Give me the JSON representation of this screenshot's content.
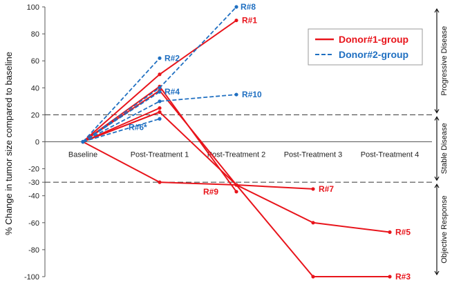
{
  "chart_data": {
    "type": "line",
    "ylabel": "% Change in tumor size compared to baseline",
    "categories": [
      "Baseline",
      "Post-Treatment 1",
      "Post-Treatment 2",
      "Post-Treatment 3",
      "Post-Treatment 4"
    ],
    "ylim": [
      -100,
      100
    ],
    "yticks": [
      "100",
      "80",
      "60",
      "40",
      "20",
      "0",
      "-20",
      "-30",
      "-40",
      "-60",
      "-80",
      "-100"
    ],
    "thresholds": [
      20,
      -30
    ],
    "zones": [
      "Progressive Disease",
      "Stable Disease",
      "Objective Response"
    ],
    "legend": {
      "position": "top-right",
      "entries": [
        "Donor#1-group",
        "Donor#2-group"
      ]
    },
    "colors": {
      "donor1": "#e8141b",
      "donor2": "#1f6fc1"
    },
    "series": [
      {
        "label": "R#1",
        "group": "Donor#1-group",
        "values": [
          0,
          50,
          90,
          null,
          null
        ]
      },
      {
        "label": "R#9",
        "group": "Donor#1-group",
        "values": [
          0,
          41,
          -37,
          null,
          null
        ]
      },
      {
        "label": "",
        "group": "Donor#1-group",
        "values": [
          0,
          25,
          null,
          null,
          null
        ]
      },
      {
        "label": "",
        "group": "Donor#1-group",
        "values": [
          0,
          22,
          null,
          null,
          null
        ]
      },
      {
        "label": "R#7",
        "group": "Donor#1-group",
        "values": [
          0,
          -30,
          -32,
          -35,
          null
        ]
      },
      {
        "label": "R#5",
        "group": "Donor#1-group",
        "values": [
          0,
          22,
          -32,
          -60,
          -67
        ]
      },
      {
        "label": "R#3",
        "group": "Donor#1-group",
        "values": [
          0,
          38,
          -32,
          -100,
          -100
        ]
      },
      {
        "label": "R#8",
        "group": "Donor#2-group",
        "values": [
          0,
          40,
          100,
          null,
          null
        ]
      },
      {
        "label": "R#2",
        "group": "Donor#2-group",
        "values": [
          0,
          62,
          null,
          null,
          null
        ]
      },
      {
        "label": "R#4",
        "group": "Donor#2-group",
        "values": [
          0,
          37,
          null,
          null,
          null
        ]
      },
      {
        "label": "R#10",
        "group": "Donor#2-group",
        "values": [
          0,
          30,
          35,
          null,
          null
        ]
      },
      {
        "label": "R#6*",
        "group": "Donor#2-group",
        "values": [
          0,
          17,
          null,
          null,
          null
        ]
      }
    ]
  }
}
